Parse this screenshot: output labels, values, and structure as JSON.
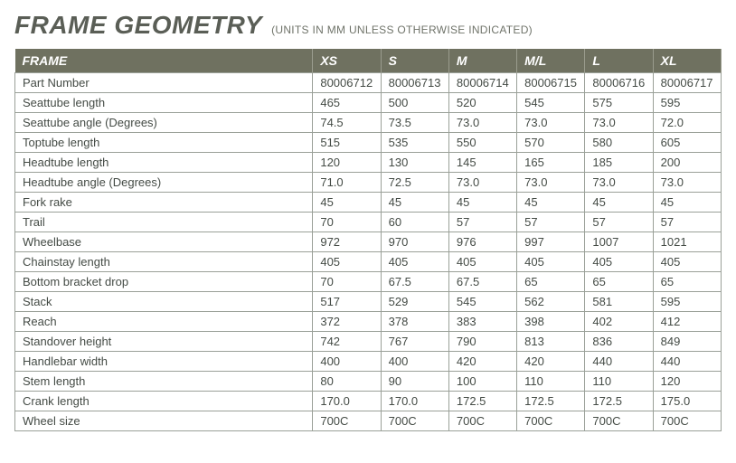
{
  "heading": {
    "title": "FRAME GEOMETRY",
    "subtitle": "(UNITS IN MM UNLESS OTHERWISE INDICATED)"
  },
  "table": {
    "type": "table",
    "header_bg": "#6f7160",
    "header_text_color": "#ffffff",
    "border_color": "#9aa098",
    "cell_text_color": "#444b45",
    "title_color": "#5a5e56",
    "subtitle_color": "#6f7369",
    "font_family": "Arial",
    "title_fontsize": 28,
    "cell_fontsize": 13,
    "columns": [
      "FRAME",
      "XS",
      "S",
      "M",
      "M/L",
      "L",
      "XL"
    ],
    "rows": [
      [
        "Part Number",
        "80006712",
        "80006713",
        "80006714",
        "80006715",
        "80006716",
        "80006717"
      ],
      [
        "Seattube length",
        "465",
        "500",
        "520",
        "545",
        "575",
        "595"
      ],
      [
        "Seattube angle (Degrees)",
        "74.5",
        "73.5",
        "73.0",
        "73.0",
        "73.0",
        "72.0"
      ],
      [
        "Toptube length",
        "515",
        "535",
        "550",
        "570",
        "580",
        "605"
      ],
      [
        "Headtube length",
        "120",
        "130",
        "145",
        "165",
        "185",
        "200"
      ],
      [
        "Headtube angle (Degrees)",
        "71.0",
        "72.5",
        "73.0",
        "73.0",
        "73.0",
        "73.0"
      ],
      [
        "Fork rake",
        "45",
        "45",
        "45",
        "45",
        "45",
        "45"
      ],
      [
        "Trail",
        "70",
        "60",
        "57",
        "57",
        "57",
        "57"
      ],
      [
        "Wheelbase",
        "972",
        "970",
        "976",
        "997",
        "1007",
        "1021"
      ],
      [
        "Chainstay length",
        "405",
        "405",
        "405",
        "405",
        "405",
        "405"
      ],
      [
        "Bottom bracket drop",
        "70",
        "67.5",
        "67.5",
        "65",
        "65",
        "65"
      ],
      [
        "Stack",
        "517",
        "529",
        "545",
        "562",
        "581",
        "595"
      ],
      [
        "Reach",
        "372",
        "378",
        "383",
        "398",
        "402",
        "412"
      ],
      [
        "Standover height",
        "742",
        "767",
        "790",
        "813",
        "836",
        "849"
      ],
      [
        "Handlebar width",
        "400",
        "400",
        "420",
        "420",
        "440",
        "440"
      ],
      [
        "Stem length",
        "80",
        "90",
        "100",
        "110",
        "110",
        "120"
      ],
      [
        "Crank length",
        "170.0",
        "170.0",
        "172.5",
        "172.5",
        "172.5",
        "175.0"
      ],
      [
        "Wheel size",
        "700C",
        "700C",
        "700C",
        "700C",
        "700C",
        "700C"
      ]
    ]
  }
}
